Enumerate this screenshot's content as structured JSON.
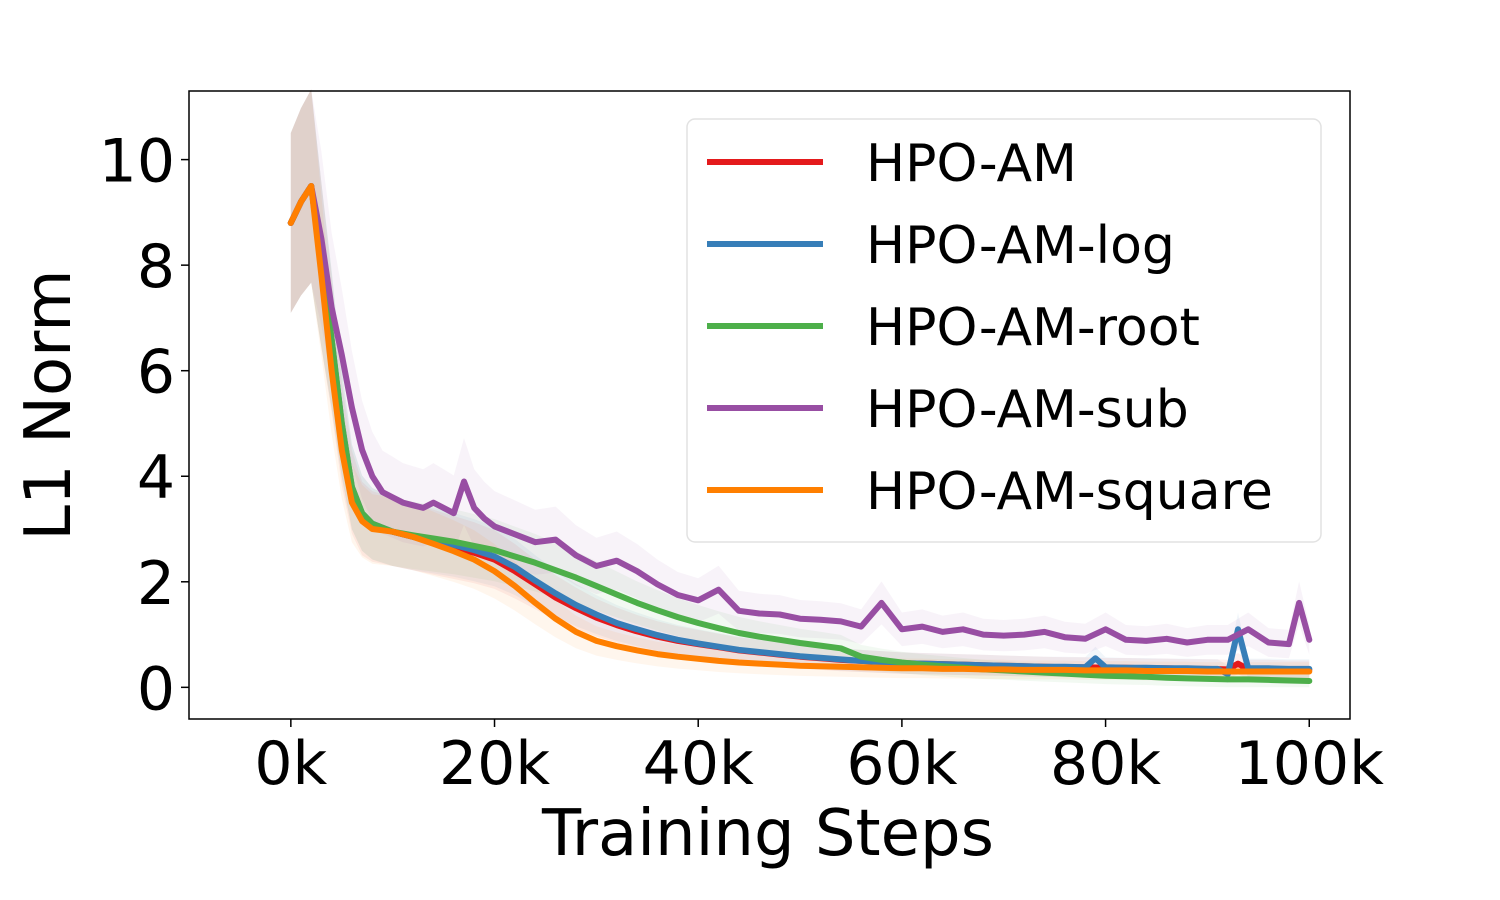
{
  "chart_data": {
    "type": "line",
    "title": "",
    "xlabel": "Training Steps",
    "ylabel": "L1 Norm",
    "xlim": [
      -10000,
      104000
    ],
    "ylim": [
      -0.6,
      11.3
    ],
    "x_ticks": [
      0,
      20000,
      40000,
      60000,
      80000,
      100000
    ],
    "x_tick_labels": [
      "0k",
      "20k",
      "40k",
      "60k",
      "80k",
      "100k"
    ],
    "y_ticks": [
      0,
      2,
      4,
      6,
      8,
      10
    ],
    "y_tick_labels": [
      "0",
      "2",
      "4",
      "6",
      "8",
      "10"
    ],
    "grid": false,
    "legend_position": "top-right",
    "series": [
      {
        "name": "HPO-AM",
        "color": "#e41a1c",
        "x": [
          0,
          1000,
          2000,
          3000,
          4000,
          5000,
          6000,
          7000,
          8000,
          10000,
          12000,
          14000,
          16000,
          18000,
          20000,
          22000,
          24000,
          26000,
          28000,
          30000,
          32000,
          34000,
          36000,
          38000,
          40000,
          42000,
          44000,
          46000,
          48000,
          50000,
          52000,
          54000,
          56000,
          58000,
          60000,
          62000,
          64000,
          66000,
          68000,
          70000,
          72000,
          74000,
          76000,
          78000,
          80000,
          82000,
          84000,
          86000,
          88000,
          90000,
          92000,
          93000,
          94000,
          96000,
          98000,
          100000
        ],
        "values": [
          8.8,
          9.2,
          9.5,
          8.0,
          6.5,
          4.8,
          3.7,
          3.2,
          3.05,
          2.95,
          2.85,
          2.75,
          2.65,
          2.55,
          2.42,
          2.2,
          1.95,
          1.7,
          1.5,
          1.32,
          1.18,
          1.06,
          0.96,
          0.88,
          0.82,
          0.76,
          0.7,
          0.66,
          0.62,
          0.58,
          0.55,
          0.52,
          0.5,
          0.48,
          0.46,
          0.45,
          0.44,
          0.43,
          0.42,
          0.41,
          0.4,
          0.39,
          0.38,
          0.38,
          0.37,
          0.37,
          0.36,
          0.36,
          0.35,
          0.35,
          0.34,
          0.45,
          0.34,
          0.34,
          0.33,
          0.33
        ]
      },
      {
        "name": "HPO-AM-log",
        "color": "#377eb8",
        "x": [
          0,
          1000,
          2000,
          3000,
          4000,
          5000,
          6000,
          7000,
          8000,
          10000,
          12000,
          14000,
          16000,
          18000,
          20000,
          22000,
          24000,
          26000,
          28000,
          30000,
          32000,
          34000,
          36000,
          38000,
          40000,
          42000,
          44000,
          46000,
          48000,
          50000,
          52000,
          54000,
          56000,
          58000,
          60000,
          62000,
          64000,
          66000,
          68000,
          70000,
          72000,
          74000,
          76000,
          78000,
          79000,
          80000,
          82000,
          84000,
          86000,
          88000,
          90000,
          91000,
          92000,
          93000,
          94000,
          96000,
          98000,
          100000
        ],
        "values": [
          8.8,
          9.2,
          9.5,
          8.0,
          6.6,
          5.0,
          3.8,
          3.3,
          3.1,
          2.95,
          2.85,
          2.78,
          2.7,
          2.6,
          2.48,
          2.28,
          2.02,
          1.78,
          1.56,
          1.38,
          1.22,
          1.1,
          0.99,
          0.9,
          0.83,
          0.77,
          0.71,
          0.67,
          0.63,
          0.59,
          0.56,
          0.53,
          0.5,
          0.48,
          0.46,
          0.45,
          0.44,
          0.43,
          0.42,
          0.41,
          0.4,
          0.39,
          0.39,
          0.38,
          0.55,
          0.38,
          0.37,
          0.37,
          0.36,
          0.36,
          0.35,
          0.35,
          0.25,
          1.1,
          0.36,
          0.36,
          0.35,
          0.35
        ]
      },
      {
        "name": "HPO-AM-root",
        "color": "#4daf4a",
        "x": [
          0,
          1000,
          2000,
          3000,
          4000,
          5000,
          6000,
          7000,
          8000,
          10000,
          12000,
          14000,
          16000,
          18000,
          20000,
          22000,
          24000,
          26000,
          28000,
          30000,
          32000,
          34000,
          36000,
          38000,
          40000,
          42000,
          44000,
          46000,
          48000,
          50000,
          52000,
          54000,
          56000,
          58000,
          60000,
          62000,
          64000,
          66000,
          68000,
          70000,
          72000,
          74000,
          76000,
          78000,
          80000,
          82000,
          84000,
          86000,
          88000,
          90000,
          92000,
          94000,
          96000,
          98000,
          100000
        ],
        "values": [
          8.8,
          9.2,
          9.5,
          8.0,
          6.6,
          5.0,
          3.8,
          3.3,
          3.1,
          2.95,
          2.88,
          2.82,
          2.76,
          2.68,
          2.6,
          2.48,
          2.36,
          2.22,
          2.08,
          1.92,
          1.76,
          1.6,
          1.46,
          1.33,
          1.22,
          1.12,
          1.03,
          0.96,
          0.9,
          0.84,
          0.79,
          0.74,
          0.58,
          0.52,
          0.47,
          0.43,
          0.4,
          0.37,
          0.34,
          0.32,
          0.3,
          0.28,
          0.26,
          0.24,
          0.22,
          0.21,
          0.2,
          0.18,
          0.17,
          0.16,
          0.15,
          0.15,
          0.14,
          0.13,
          0.12
        ]
      },
      {
        "name": "HPO-AM-sub",
        "color": "#984ea3",
        "x": [
          0,
          1000,
          2000,
          3000,
          4000,
          5000,
          6000,
          7000,
          8000,
          9000,
          10000,
          11000,
          12000,
          13000,
          14000,
          15000,
          16000,
          17000,
          18000,
          19000,
          20000,
          22000,
          24000,
          26000,
          28000,
          30000,
          32000,
          34000,
          36000,
          38000,
          40000,
          42000,
          44000,
          46000,
          48000,
          50000,
          52000,
          54000,
          56000,
          58000,
          60000,
          62000,
          64000,
          66000,
          68000,
          70000,
          72000,
          74000,
          76000,
          78000,
          80000,
          82000,
          84000,
          86000,
          88000,
          90000,
          92000,
          94000,
          96000,
          98000,
          99000,
          100000
        ],
        "values": [
          8.8,
          9.2,
          9.5,
          8.5,
          7.2,
          6.3,
          5.3,
          4.5,
          4.0,
          3.7,
          3.6,
          3.5,
          3.45,
          3.4,
          3.5,
          3.4,
          3.3,
          3.9,
          3.4,
          3.2,
          3.05,
          2.9,
          2.75,
          2.8,
          2.5,
          2.3,
          2.4,
          2.2,
          1.95,
          1.75,
          1.65,
          1.85,
          1.45,
          1.4,
          1.38,
          1.3,
          1.28,
          1.25,
          1.15,
          1.6,
          1.1,
          1.15,
          1.05,
          1.1,
          1.0,
          0.98,
          1.0,
          1.05,
          0.95,
          0.92,
          1.1,
          0.9,
          0.88,
          0.92,
          0.85,
          0.9,
          0.9,
          1.1,
          0.85,
          0.82,
          1.6,
          0.9
        ]
      },
      {
        "name": "HPO-AM-square",
        "color": "#ff7f00",
        "x": [
          0,
          1000,
          2000,
          3000,
          4000,
          5000,
          6000,
          7000,
          8000,
          10000,
          12000,
          14000,
          16000,
          18000,
          20000,
          22000,
          24000,
          26000,
          28000,
          30000,
          32000,
          34000,
          36000,
          38000,
          40000,
          42000,
          44000,
          46000,
          48000,
          50000,
          52000,
          54000,
          56000,
          58000,
          60000,
          62000,
          64000,
          66000,
          68000,
          70000,
          72000,
          74000,
          76000,
          78000,
          80000,
          82000,
          84000,
          86000,
          88000,
          90000,
          92000,
          94000,
          96000,
          98000,
          100000
        ],
        "values": [
          8.8,
          9.2,
          9.5,
          7.8,
          6.0,
          4.5,
          3.5,
          3.15,
          3.0,
          2.95,
          2.85,
          2.72,
          2.58,
          2.42,
          2.2,
          1.92,
          1.6,
          1.3,
          1.05,
          0.88,
          0.78,
          0.7,
          0.63,
          0.58,
          0.54,
          0.5,
          0.47,
          0.45,
          0.43,
          0.41,
          0.4,
          0.39,
          0.38,
          0.37,
          0.36,
          0.36,
          0.35,
          0.35,
          0.34,
          0.34,
          0.33,
          0.33,
          0.33,
          0.32,
          0.32,
          0.32,
          0.31,
          0.31,
          0.31,
          0.3,
          0.3,
          0.3,
          0.3,
          0.3,
          0.3
        ]
      }
    ]
  }
}
